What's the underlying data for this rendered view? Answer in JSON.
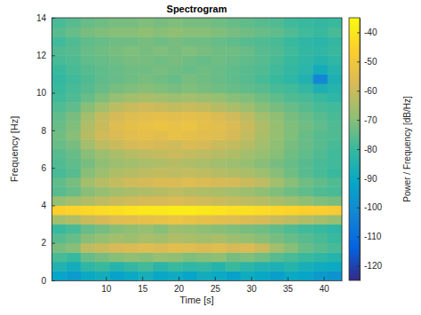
{
  "chart_data": {
    "type": "heatmap",
    "title": "Spectrogram",
    "x_label": "Time [s]",
    "y_label": "Frequency [Hz]",
    "xlim": [
      2.5,
      42.5
    ],
    "ylim": [
      0,
      14
    ],
    "xticks": [
      10,
      15,
      20,
      25,
      30,
      35,
      40
    ],
    "yticks": [
      0,
      2,
      4,
      6,
      8,
      10,
      12,
      14
    ],
    "x_edges": [
      2.5,
      4.5,
      6.5,
      8.5,
      10.5,
      12.5,
      14.5,
      16.5,
      18.5,
      20.5,
      22.5,
      24.5,
      26.5,
      28.5,
      30.5,
      32.5,
      34.5,
      36.5,
      38.5,
      40.5,
      42.5
    ],
    "y_edges": [
      0,
      0.5,
      1,
      1.5,
      2,
      2.5,
      3,
      3.5,
      4,
      4.5,
      5,
      5.5,
      6,
      6.5,
      7,
      7.5,
      8,
      8.5,
      9,
      9.5,
      10,
      10.5,
      11,
      11.5,
      12,
      12.5,
      13,
      13.5,
      14
    ],
    "values": [
      [
        -92,
        -95,
        -90,
        -88,
        -93,
        -90,
        -87,
        -91,
        -89,
        -92,
        -88,
        -90,
        -93,
        -89,
        -91,
        -94,
        -90,
        -92,
        -96,
        -98
      ],
      [
        -85,
        -88,
        -82,
        -80,
        -84,
        -81,
        -79,
        -83,
        -80,
        -82,
        -81,
        -84,
        -80,
        -83,
        -85,
        -86,
        -84,
        -87,
        -89,
        -90
      ],
      [
        -78,
        -80,
        -74,
        -72,
        -70,
        -69,
        -70,
        -68,
        -69,
        -71,
        -70,
        -69,
        -72,
        -71,
        -73,
        -76,
        -78,
        -80,
        -82,
        -84
      ],
      [
        -72,
        -70,
        -62,
        -60,
        -58,
        -57,
        -56,
        -57,
        -55,
        -56,
        -57,
        -56,
        -58,
        -57,
        -60,
        -66,
        -70,
        -74,
        -76,
        -78
      ],
      [
        -76,
        -74,
        -70,
        -68,
        -66,
        -67,
        -65,
        -66,
        -64,
        -65,
        -66,
        -65,
        -67,
        -68,
        -70,
        -72,
        -74,
        -76,
        -78,
        -80
      ],
      [
        -80,
        -78,
        -74,
        -72,
        -70,
        -69,
        -68,
        -70,
        -67,
        -68,
        -69,
        -70,
        -71,
        -72,
        -73,
        -75,
        -77,
        -79,
        -80,
        -82
      ],
      [
        -66,
        -64,
        -60,
        -58,
        -56,
        -55,
        -54,
        -53,
        -52,
        -53,
        -54,
        -55,
        -56,
        -57,
        -58,
        -60,
        -62,
        -64,
        -66,
        -68
      ],
      [
        -46,
        -45,
        -44,
        -43,
        -42,
        -41,
        -40,
        -40,
        -39,
        -39,
        -40,
        -41,
        -42,
        -42,
        -43,
        -44,
        -45,
        -46,
        -47,
        -48
      ],
      [
        -68,
        -66,
        -64,
        -62,
        -60,
        -59,
        -58,
        -58,
        -57,
        -58,
        -59,
        -60,
        -61,
        -62,
        -63,
        -65,
        -67,
        -69,
        -71,
        -72
      ],
      [
        -76,
        -74,
        -70,
        -68,
        -66,
        -65,
        -64,
        -63,
        -62,
        -63,
        -64,
        -65,
        -66,
        -67,
        -69,
        -71,
        -73,
        -75,
        -77,
        -78
      ],
      [
        -75,
        -72,
        -66,
        -63,
        -61,
        -59,
        -58,
        -57,
        -57,
        -56,
        -57,
        -58,
        -58,
        -60,
        -62,
        -66,
        -70,
        -73,
        -75,
        -77
      ],
      [
        -78,
        -76,
        -70,
        -67,
        -64,
        -63,
        -62,
        -61,
        -62,
        -61,
        -62,
        -63,
        -64,
        -65,
        -67,
        -70,
        -73,
        -76,
        -78,
        -80
      ],
      [
        -77,
        -75,
        -72,
        -69,
        -67,
        -66,
        -65,
        -64,
        -63,
        -64,
        -65,
        -66,
        -67,
        -68,
        -70,
        -72,
        -74,
        -76,
        -78,
        -79
      ],
      [
        -76,
        -74,
        -70,
        -67,
        -65,
        -63,
        -62,
        -61,
        -60,
        -61,
        -62,
        -63,
        -64,
        -66,
        -68,
        -70,
        -73,
        -75,
        -77,
        -79
      ],
      [
        -74,
        -72,
        -66,
        -62,
        -60,
        -58,
        -57,
        -58,
        -59,
        -57,
        -58,
        -60,
        -61,
        -63,
        -66,
        -69,
        -72,
        -74,
        -76,
        -78
      ],
      [
        -73,
        -70,
        -63,
        -59,
        -57,
        -55,
        -54,
        -55,
        -53,
        -54,
        -55,
        -56,
        -58,
        -61,
        -65,
        -68,
        -71,
        -74,
        -76,
        -77
      ],
      [
        -74,
        -71,
        -64,
        -60,
        -56,
        -54,
        -53,
        -52,
        -53,
        -52,
        -54,
        -55,
        -57,
        -60,
        -64,
        -68,
        -71,
        -73,
        -75,
        -77
      ],
      [
        -75,
        -72,
        -66,
        -61,
        -58,
        -56,
        -55,
        -54,
        -55,
        -54,
        -55,
        -57,
        -59,
        -62,
        -66,
        -69,
        -72,
        -74,
        -76,
        -78
      ],
      [
        -77,
        -75,
        -70,
        -66,
        -62,
        -60,
        -59,
        -60,
        -61,
        -60,
        -61,
        -63,
        -65,
        -67,
        -70,
        -72,
        -74,
        -76,
        -78,
        -79
      ],
      [
        -79,
        -77,
        -74,
        -71,
        -68,
        -66,
        -65,
        -66,
        -67,
        -66,
        -67,
        -68,
        -70,
        -71,
        -73,
        -75,
        -77,
        -78,
        -80,
        -82
      ],
      [
        -80,
        -78,
        -76,
        -74,
        -72,
        -71,
        -70,
        -71,
        -72,
        -71,
        -72,
        -73,
        -74,
        -75,
        -76,
        -78,
        -79,
        -81,
        -86,
        -84
      ],
      [
        -81,
        -79,
        -77,
        -75,
        -74,
        -73,
        -72,
        -73,
        -74,
        -72,
        -73,
        -74,
        -75,
        -76,
        -78,
        -80,
        -82,
        -85,
        -102,
        -86
      ],
      [
        -80,
        -78,
        -76,
        -75,
        -74,
        -73,
        -73,
        -72,
        -73,
        -74,
        -73,
        -74,
        -75,
        -76,
        -77,
        -79,
        -81,
        -83,
        -88,
        -84
      ],
      [
        -78,
        -77,
        -75,
        -74,
        -73,
        -72,
        -72,
        -73,
        -72,
        -73,
        -74,
        -73,
        -74,
        -75,
        -76,
        -78,
        -80,
        -82,
        -84,
        -82
      ],
      [
        -77,
        -76,
        -74,
        -73,
        -72,
        -71,
        -72,
        -71,
        -72,
        -71,
        -72,
        -73,
        -73,
        -74,
        -76,
        -77,
        -79,
        -81,
        -82,
        -80
      ],
      [
        -79,
        -77,
        -75,
        -74,
        -73,
        -73,
        -72,
        -73,
        -72,
        -73,
        -73,
        -74,
        -75,
        -76,
        -77,
        -78,
        -80,
        -82,
        -83,
        -81
      ],
      [
        -76,
        -74,
        -72,
        -71,
        -70,
        -70,
        -69,
        -70,
        -69,
        -70,
        -70,
        -71,
        -72,
        -73,
        -74,
        -75,
        -77,
        -79,
        -80,
        -78
      ],
      [
        -78,
        -76,
        -74,
        -73,
        -72,
        -72,
        -71,
        -72,
        -71,
        -72,
        -72,
        -73,
        -74,
        -75,
        -76,
        -77,
        -79,
        -80,
        -81,
        -80
      ]
    ],
    "colorbar": {
      "label": "Power / Frequency [dB/Hz]",
      "range": [
        -125,
        -35
      ],
      "ticks": [
        -120,
        -110,
        -100,
        -90,
        -80,
        -70,
        -60,
        -50,
        -40
      ]
    }
  }
}
